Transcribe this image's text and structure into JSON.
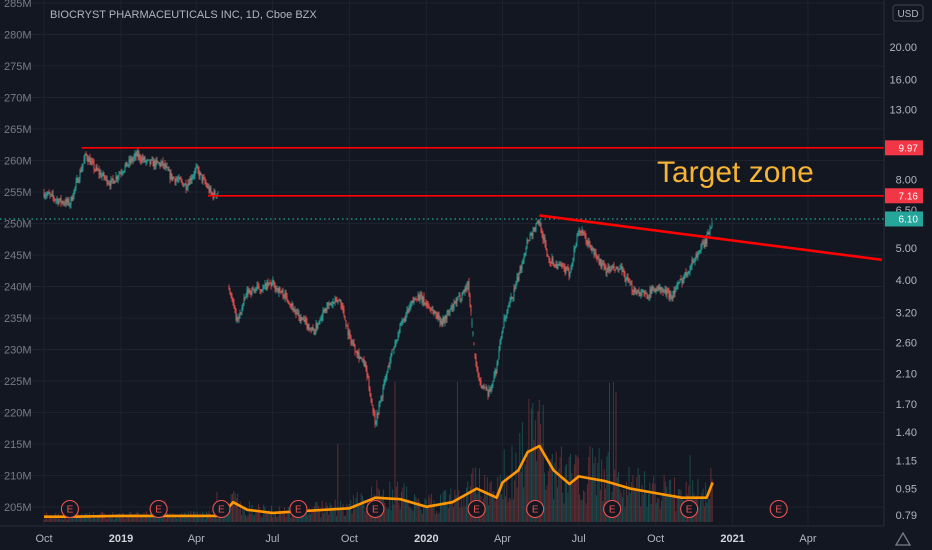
{
  "chart_data": {
    "type": "candlestick",
    "title": "BIOCRYST PHARMACEUTICALS INC, 1D, Cboe BZX",
    "currency": "USD",
    "price_axis": {
      "scale": "log",
      "ticks": [
        "20.00",
        "16.00",
        "13.00",
        "10.00",
        "8.00",
        "6.50",
        "5.00",
        "4.00",
        "3.20",
        "2.60",
        "2.10",
        "1.70",
        "1.40",
        "1.15",
        "0.95",
        "0.79"
      ]
    },
    "left_axis": {
      "ticks": [
        "285M",
        "280M",
        "275M",
        "270M",
        "265M",
        "260M",
        "255M",
        "250M",
        "245M",
        "240M",
        "235M",
        "230M",
        "225M",
        "220M",
        "215M",
        "210M",
        "205M"
      ]
    },
    "x_ticks": [
      "Oct",
      "2019",
      "Apr",
      "Jul",
      "Oct",
      "2020",
      "Apr",
      "Jul",
      "Oct",
      "2021",
      "Apr"
    ],
    "x_bold_ticks": [
      "2019",
      "2020",
      "2021"
    ],
    "price_labels": [
      {
        "value": "9.97",
        "color": "#f23645"
      },
      {
        "value": "7.16",
        "color": "#f23645"
      },
      {
        "value": "6.10",
        "color": "#26a69a"
      }
    ],
    "annotation": "Target zone",
    "horizontal_lines": [
      {
        "price": 9.97,
        "color": "#ff0000",
        "from": "2018-11-15"
      },
      {
        "price": 7.16,
        "color": "#ff0000",
        "from": "2019-04-15"
      }
    ],
    "last_price_line": {
      "price": 6.1,
      "color": "#26a69a",
      "style": "dotted"
    },
    "trendline": {
      "from": {
        "date": "2020-05-15",
        "price": 6.25
      },
      "to": {
        "date": "2021-05-31",
        "price": 4.6
      },
      "color": "#ff0000"
    },
    "earnings_markers": [
      "E",
      "E",
      "E",
      "E",
      "E",
      "E",
      "E",
      "E",
      "E",
      "E"
    ],
    "price_path": [
      [
        "2018-10",
        7.3
      ],
      [
        "2018-10-20",
        6.9
      ],
      [
        "2018-11",
        6.8
      ],
      [
        "2018-11-20",
        9.5
      ],
      [
        "2018-12",
        8.6
      ],
      [
        "2018-12-20",
        7.8
      ],
      [
        "2019-01",
        8.5
      ],
      [
        "2019-01-20",
        9.5
      ],
      [
        "2019-02",
        9.0
      ],
      [
        "2019-02-20",
        8.9
      ],
      [
        "2019-03",
        8.2
      ],
      [
        "2019-03-20",
        7.7
      ],
      [
        "2019-04",
        8.6
      ],
      [
        "2019-04-20",
        7.2
      ],
      [
        "2019-05",
        7.4
      ],
      [
        "2019-05-10",
        3.8
      ],
      [
        "2019-05-20",
        3.0
      ],
      [
        "2019-06",
        3.7
      ],
      [
        "2019-06-20",
        3.8
      ],
      [
        "2019-07",
        3.9
      ],
      [
        "2019-07-20",
        3.5
      ],
      [
        "2019-08",
        3.1
      ],
      [
        "2019-08-20",
        2.8
      ],
      [
        "2019-09",
        3.3
      ],
      [
        "2019-09-20",
        3.5
      ],
      [
        "2019-10",
        2.7
      ],
      [
        "2019-10-20",
        2.2
      ],
      [
        "2019-11",
        1.5
      ],
      [
        "2019-11-20",
        2.4
      ],
      [
        "2019-12",
        2.9
      ],
      [
        "2019-12-20",
        3.6
      ],
      [
        "2020-01",
        3.4
      ],
      [
        "2020-01-20",
        3.0
      ],
      [
        "2020-02",
        3.3
      ],
      [
        "2020-02-20",
        3.9
      ],
      [
        "2020-03",
        2.1
      ],
      [
        "2020-03-15",
        1.8
      ],
      [
        "2020-03-25",
        2.2
      ],
      [
        "2020-04",
        2.9
      ],
      [
        "2020-04-20",
        4.1
      ],
      [
        "2020-05",
        5.3
      ],
      [
        "2020-05-15",
        6.0
      ],
      [
        "2020-05-25",
        4.7
      ],
      [
        "2020-06",
        4.5
      ],
      [
        "2020-06-20",
        4.2
      ],
      [
        "2020-07",
        5.7
      ],
      [
        "2020-07-20",
        4.8
      ],
      [
        "2020-08",
        4.3
      ],
      [
        "2020-08-20",
        4.3
      ],
      [
        "2020-09",
        3.8
      ],
      [
        "2020-09-20",
        3.6
      ],
      [
        "2020-10",
        3.8
      ],
      [
        "2020-10-20",
        3.6
      ],
      [
        "2020-11",
        4.0
      ],
      [
        "2020-11-20",
        4.8
      ],
      [
        "2020-12",
        5.3
      ],
      [
        "2020-12-08",
        6.1
      ]
    ],
    "volume_ma_path": [
      [
        "2018-10",
        0.35
      ],
      [
        "2018-11",
        0.35
      ],
      [
        "2019-01",
        0.4
      ],
      [
        "2019-03",
        0.4
      ],
      [
        "2019-05",
        0.4
      ],
      [
        "2019-05-15",
        1.3
      ],
      [
        "2019-06",
        0.8
      ],
      [
        "2019-07",
        0.6
      ],
      [
        "2019-09",
        0.8
      ],
      [
        "2019-10",
        0.9
      ],
      [
        "2019-11",
        1.6
      ],
      [
        "2019-12",
        1.5
      ],
      [
        "2020-01",
        1.0
      ],
      [
        "2020-02",
        1.3
      ],
      [
        "2020-03",
        2.2
      ],
      [
        "2020-03-25",
        1.6
      ],
      [
        "2020-04",
        2.6
      ],
      [
        "2020-04-20",
        3.4
      ],
      [
        "2020-05",
        4.6
      ],
      [
        "2020-05-15",
        5.0
      ],
      [
        "2020-06",
        3.4
      ],
      [
        "2020-06-20",
        2.5
      ],
      [
        "2020-07",
        3.0
      ],
      [
        "2020-08",
        2.7
      ],
      [
        "2020-09",
        2.2
      ],
      [
        "2020-10",
        1.9
      ],
      [
        "2020-11",
        1.6
      ],
      [
        "2020-12",
        1.6
      ],
      [
        "2020-12-08",
        2.6
      ]
    ]
  }
}
